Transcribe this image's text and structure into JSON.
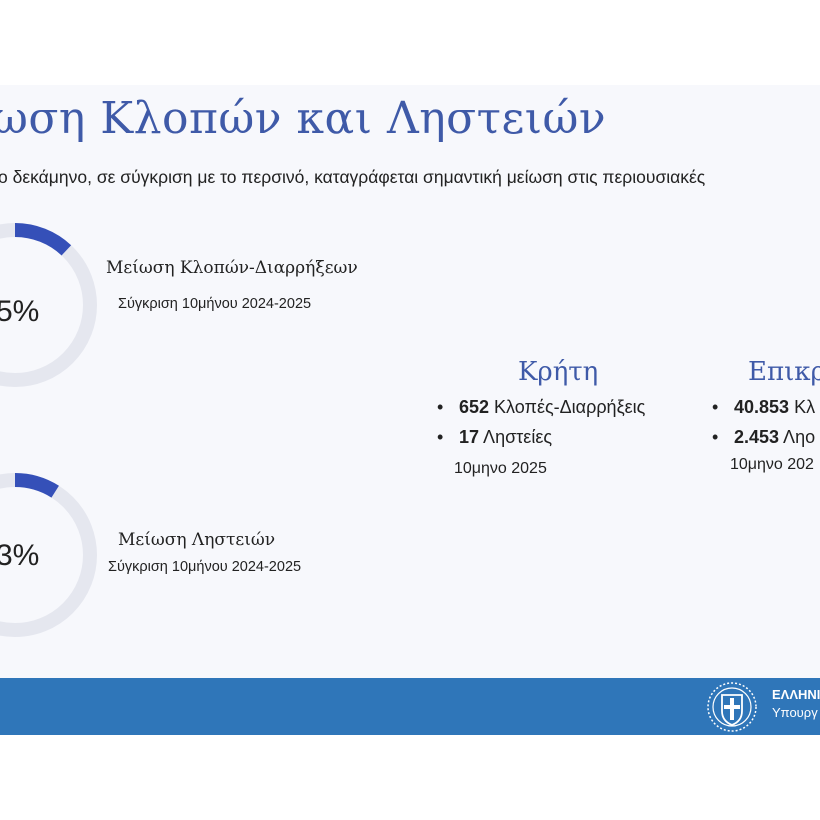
{
  "slide": {
    "title": "ωση Κλοπών και Ληστειών",
    "subtitle": "ο δεκάμηνο, σε σύγκριση με το περσινό, καταγράφεται σημαντική μείωση στις περιουσιακές"
  },
  "metrics": [
    {
      "percent_text": "5%",
      "label": "Μείωση Κλοπών-Διαρρήξεων",
      "sub": "Σύγκριση 10μήνου 2024-2025",
      "ring_fill_fraction": 0.12
    },
    {
      "percent_text": "3%",
      "label": "Μείωση Ληστειών",
      "sub": "Σύγκριση 10μήνου 2024-2025",
      "ring_fill_fraction": 0.09
    }
  ],
  "regions": [
    {
      "title": "Κρήτη",
      "items": [
        {
          "bullet": "•",
          "number": "652",
          "text": " Κλοπές-Διαρρήξεις"
        },
        {
          "bullet": "•",
          "number": "17",
          "text": " Ληστείες"
        }
      ],
      "period": "10μηνο 2025"
    },
    {
      "title": "Επικρ",
      "items": [
        {
          "bullet": "•",
          "number": "40.853",
          "text": " Κλ"
        },
        {
          "bullet": "•",
          "number": "2.453",
          "text": " Ληο"
        }
      ],
      "period": "10μηνο 202"
    }
  ],
  "footer": {
    "line1": "ΕΛΛΗΝΙ",
    "line2": "Υπουργ"
  },
  "colors": {
    "accent": "#3f5aa8",
    "ring_fill": "#3550b8",
    "ring_track": "#e5e7ef",
    "footer_bg": "#2f76b9"
  },
  "icons": {
    "emblem": "greek-coat-of-arms-icon"
  }
}
